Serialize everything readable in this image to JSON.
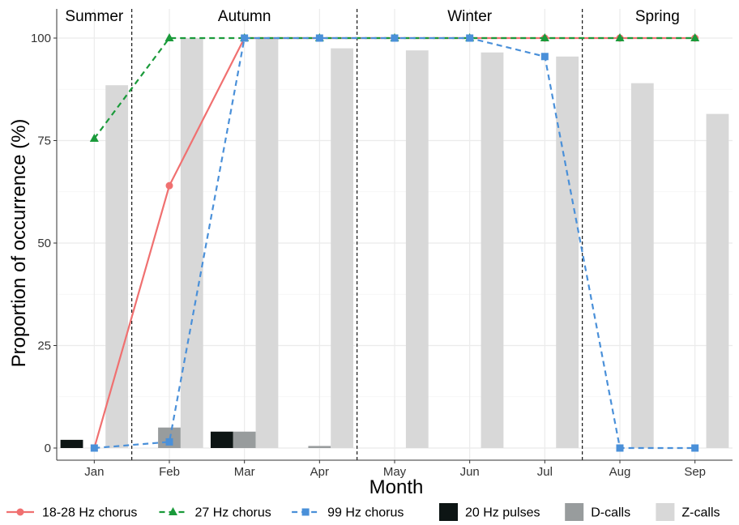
{
  "chart_data": {
    "type": "bar",
    "xlabel": "Month",
    "ylabel": "Proportion of occurrence (%)",
    "categories": [
      "Jan",
      "Feb",
      "Mar",
      "Apr",
      "May",
      "Jun",
      "Jul",
      "Aug",
      "Sep"
    ],
    "ylim": [
      0,
      100
    ],
    "yticks": [
      0,
      25,
      50,
      75,
      100
    ],
    "grid": true,
    "legend_position": "bottom",
    "seasons": [
      {
        "label": "Summer",
        "start": 0.5,
        "end": 1.5
      },
      {
        "label": "Autumn",
        "start": 1.5,
        "end": 4.5
      },
      {
        "label": "Winter",
        "start": 4.5,
        "end": 7.5
      },
      {
        "label": "Spring",
        "start": 7.5,
        "end": 9.5
      }
    ],
    "season_boundaries": [
      1.5,
      4.5,
      7.5
    ],
    "bar_series": [
      {
        "name": "20 Hz pulses",
        "color": "#0d1514",
        "values": [
          2,
          0,
          4,
          0,
          0,
          0,
          0,
          0,
          0
        ]
      },
      {
        "name": "D-calls",
        "color": "#989c9d",
        "values": [
          0,
          5,
          4,
          0.5,
          0,
          0,
          0,
          0,
          0
        ]
      },
      {
        "name": "Z-calls",
        "color": "#d8d8d8",
        "values": [
          88.5,
          100,
          100,
          97.5,
          97,
          96.5,
          95.5,
          89,
          81.5
        ]
      }
    ],
    "line_series": [
      {
        "name": "18-28 Hz chorus",
        "color": "#f07070",
        "dash": "solid",
        "marker": "circle",
        "values": [
          0,
          64,
          100,
          100,
          100,
          100,
          100,
          100,
          100
        ]
      },
      {
        "name": "27 Hz chorus",
        "color": "#1a9a3a",
        "dash": "dashed",
        "marker": "triangle",
        "values": [
          75.5,
          100,
          100,
          100,
          100,
          100,
          100,
          100,
          100
        ]
      },
      {
        "name": "99 Hz chorus",
        "color": "#4a90d9",
        "dash": "dashed",
        "marker": "square",
        "values": [
          0,
          1.5,
          100,
          100,
          100,
          100,
          95.5,
          0,
          0
        ]
      }
    ]
  }
}
